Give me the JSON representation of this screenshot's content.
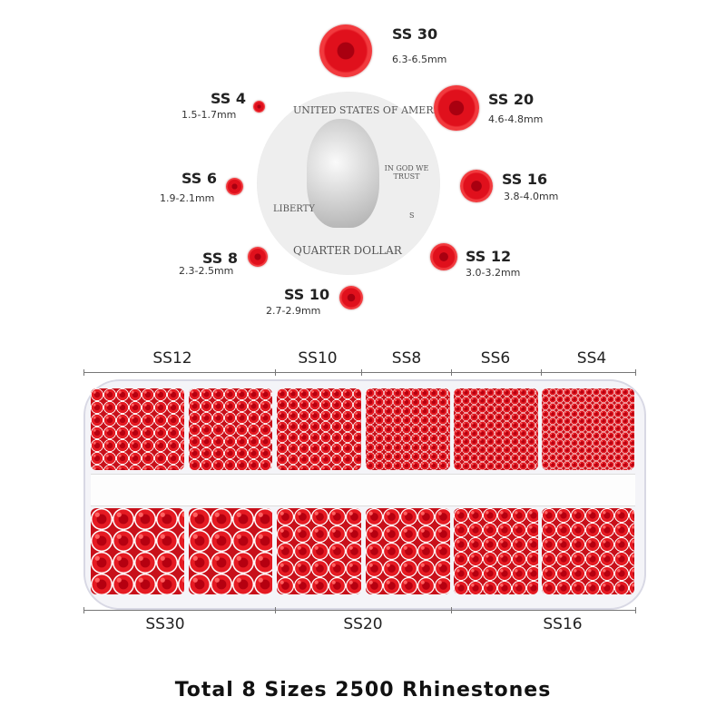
{
  "coin": {
    "top_text": "UNITED STATES OF AMERICA",
    "motto": "IN GOD WE TRUST",
    "liberty": "LIBERTY",
    "mint": "S",
    "bottom_text": "QUARTER DOLLAR"
  },
  "sizes": [
    {
      "name": "SS 30",
      "range": "6.3-6.5mm"
    },
    {
      "name": "SS 20",
      "range": "4.6-4.8mm"
    },
    {
      "name": "SS 16",
      "range": "3.8-4.0mm"
    },
    {
      "name": "SS 12",
      "range": "3.0-3.2mm"
    },
    {
      "name": "SS 10",
      "range": "2.7-2.9mm"
    },
    {
      "name": "SS 8",
      "range": "2.3-2.5mm"
    },
    {
      "name": "SS 6",
      "range": "1.9-2.1mm"
    },
    {
      "name": "SS 4",
      "range": "1.5-1.7mm"
    }
  ],
  "tray": {
    "top_labels": [
      "SS12",
      "SS10",
      "SS8",
      "SS6",
      "SS4"
    ],
    "bottom_labels": [
      "SS30",
      "SS20",
      "SS16"
    ]
  },
  "gem_color": "#e0101c",
  "footer": "Total 8 Sizes 2500 Rhinestones"
}
